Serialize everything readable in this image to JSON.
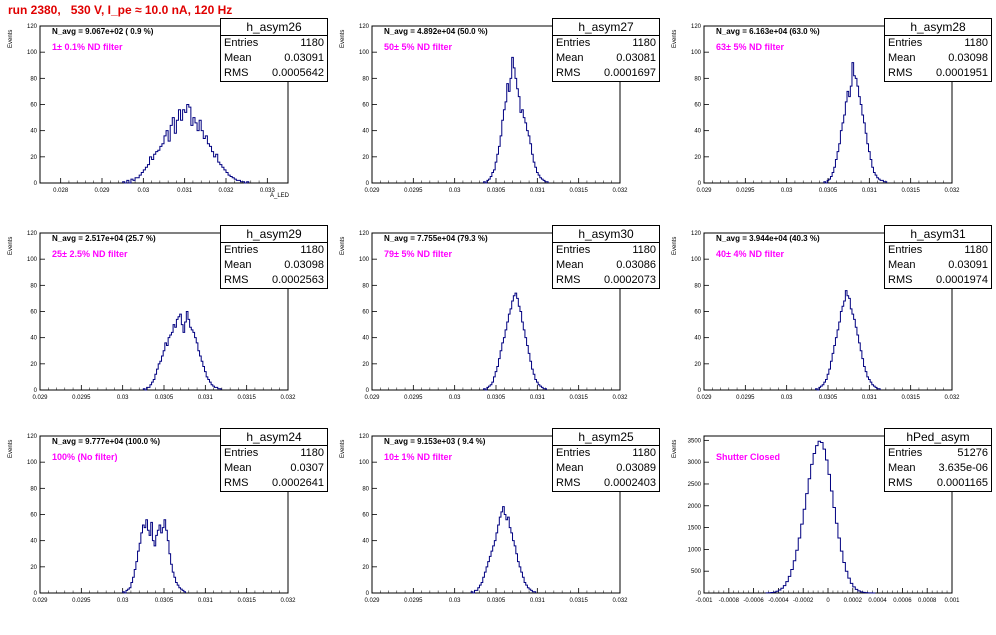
{
  "page_title": "run 2380,   530 V, I_pe ≈ 10.0 nA, 120 Hz",
  "colors": {
    "histogram_line": "#000080",
    "filter_text": "#ff00ff",
    "title_text": "#e00000"
  },
  "chart_data": [
    {
      "type": "bar",
      "name": "h_asym26",
      "ylabel": "Events",
      "xlabel": "A_LED",
      "navg": "N_avg = 9.067e+02 ( 0.9 %)",
      "filter": "1± 0.1% ND filter",
      "stats": {
        "entries": "1180",
        "mean": "0.03091",
        "rms": "0.0005642"
      },
      "xlim": [
        0.0275,
        0.0335
      ],
      "ylim": [
        0,
        120
      ],
      "xticks": [
        "0.028",
        "0.029",
        "0.03",
        "0.031",
        "0.032",
        "0.033"
      ],
      "yticks": [
        "0",
        "20",
        "40",
        "60",
        "80",
        "100",
        "120"
      ],
      "x_start": 0.0295,
      "bin_width": 5e-05,
      "values": [
        1,
        0,
        2,
        0,
        3,
        2,
        4,
        4,
        6,
        8,
        10,
        12,
        14,
        20,
        18,
        22,
        24,
        25,
        28,
        30,
        36,
        40,
        32,
        44,
        50,
        38,
        48,
        56,
        48,
        56,
        54,
        60,
        58,
        44,
        50,
        46,
        40,
        48,
        40,
        34,
        36,
        30,
        28,
        24,
        20,
        22,
        16,
        14,
        12,
        10,
        8,
        6,
        5,
        4,
        3,
        2,
        2,
        1,
        1,
        0,
        1
      ]
    },
    {
      "type": "bar",
      "name": "h_asym27",
      "ylabel": "Events",
      "xlabel": "",
      "navg": "N_avg = 4.892e+04 (50.0 %)",
      "filter": "50± 5% ND filter",
      "stats": {
        "entries": "1180",
        "mean": "0.03081",
        "rms": "0.0001697"
      },
      "xlim": [
        0.029,
        0.032
      ],
      "ylim": [
        0,
        120
      ],
      "xticks": [
        "0.029",
        "0.0295",
        "0.03",
        "0.0305",
        "0.031",
        "0.0315",
        "0.032"
      ],
      "yticks": [
        "0",
        "20",
        "40",
        "60",
        "80",
        "100",
        "120"
      ],
      "x_start": 0.03035,
      "bin_width": 2e-05,
      "values": [
        1,
        0,
        2,
        3,
        5,
        8,
        10,
        16,
        22,
        28,
        36,
        48,
        56,
        62,
        76,
        70,
        80,
        96,
        88,
        80,
        72,
        66,
        54,
        56,
        50,
        46,
        40,
        36,
        30,
        22,
        16,
        12,
        8,
        6,
        4,
        3,
        2,
        1,
        1
      ]
    },
    {
      "type": "bar",
      "name": "h_asym28",
      "ylabel": "Events",
      "xlabel": "",
      "navg": "N_avg = 6.163e+04 (63.0 %)",
      "filter": "63± 5% ND filter",
      "stats": {
        "entries": "1180",
        "mean": "0.03098",
        "rms": "0.0001951"
      },
      "xlim": [
        0.029,
        0.032
      ],
      "ylim": [
        0,
        120
      ],
      "xticks": [
        "0.029",
        "0.0295",
        "0.03",
        "0.0305",
        "0.031",
        "0.0315",
        "0.032"
      ],
      "yticks": [
        "0",
        "20",
        "40",
        "60",
        "80",
        "100",
        "120"
      ],
      "x_start": 0.03045,
      "bin_width": 2e-05,
      "values": [
        1,
        0,
        2,
        3,
        5,
        8,
        12,
        18,
        24,
        30,
        40,
        46,
        52,
        62,
        70,
        66,
        74,
        92,
        82,
        80,
        74,
        66,
        60,
        52,
        46,
        38,
        30,
        24,
        18,
        12,
        8,
        6,
        4,
        3,
        2,
        2,
        1,
        1
      ]
    },
    {
      "type": "bar",
      "name": "h_asym29",
      "ylabel": "Events",
      "xlabel": "",
      "navg": "N_avg = 2.517e+04 (25.7 %)",
      "filter": "25± 2.5% ND filter",
      "stats": {
        "entries": "1180",
        "mean": "0.03098",
        "rms": "0.0002563"
      },
      "xlim": [
        0.029,
        0.032
      ],
      "ylim": [
        0,
        120
      ],
      "xticks": [
        "0.029",
        "0.0295",
        "0.03",
        "0.0305",
        "0.031",
        "0.0315",
        "0.032"
      ],
      "yticks": [
        "0",
        "20",
        "40",
        "60",
        "80",
        "100",
        "120"
      ],
      "x_start": 0.03025,
      "bin_width": 2e-05,
      "values": [
        1,
        0,
        2,
        2,
        4,
        6,
        8,
        12,
        16,
        20,
        22,
        26,
        30,
        36,
        34,
        40,
        42,
        44,
        50,
        48,
        54,
        56,
        58,
        50,
        44,
        52,
        60,
        54,
        48,
        46,
        44,
        40,
        36,
        30,
        26,
        22,
        18,
        14,
        10,
        8,
        6,
        4,
        3,
        2,
        2,
        1,
        1
      ]
    },
    {
      "type": "bar",
      "name": "h_asym30",
      "ylabel": "Events",
      "xlabel": "",
      "navg": "N_avg = 7.755e+04 (79.3 %)",
      "filter": "79± 5% ND filter",
      "stats": {
        "entries": "1180",
        "mean": "0.03086",
        "rms": "0.0002073"
      },
      "xlim": [
        0.029,
        0.032
      ],
      "ylim": [
        0,
        120
      ],
      "xticks": [
        "0.029",
        "0.0295",
        "0.03",
        "0.0305",
        "0.031",
        "0.0315",
        "0.032"
      ],
      "yticks": [
        "0",
        "20",
        "40",
        "60",
        "80",
        "100",
        "120"
      ],
      "x_start": 0.03035,
      "bin_width": 2e-05,
      "values": [
        1,
        0,
        2,
        3,
        4,
        6,
        10,
        14,
        18,
        24,
        30,
        36,
        40,
        46,
        52,
        58,
        62,
        68,
        72,
        74,
        70,
        64,
        60,
        52,
        46,
        40,
        34,
        28,
        22,
        16,
        12,
        8,
        6,
        4,
        3,
        2,
        1,
        1
      ]
    },
    {
      "type": "bar",
      "name": "h_asym31",
      "ylabel": "Events",
      "xlabel": "",
      "navg": "N_avg = 3.944e+04 (40.3 %)",
      "filter": "40± 4% ND filter",
      "stats": {
        "entries": "1180",
        "mean": "0.03091",
        "rms": "0.0001974"
      },
      "xlim": [
        0.029,
        0.032
      ],
      "ylim": [
        0,
        120
      ],
      "xticks": [
        "0.029",
        "0.0295",
        "0.03",
        "0.0305",
        "0.031",
        "0.0315",
        "0.032"
      ],
      "yticks": [
        "0",
        "20",
        "40",
        "60",
        "80",
        "100",
        "120"
      ],
      "x_start": 0.03035,
      "bin_width": 2e-05,
      "values": [
        1,
        0,
        2,
        3,
        4,
        6,
        8,
        12,
        16,
        22,
        28,
        34,
        40,
        46,
        52,
        60,
        64,
        68,
        76,
        72,
        70,
        62,
        58,
        54,
        48,
        42,
        36,
        30,
        24,
        18,
        14,
        10,
        8,
        6,
        4,
        3,
        2,
        1,
        1
      ]
    },
    {
      "type": "bar",
      "name": "h_asym24",
      "ylabel": "Events",
      "xlabel": "",
      "navg": "N_avg = 9.777e+04 (100.0 %)",
      "filter": "100% (No filter)",
      "stats": {
        "entries": "1180",
        "mean": "0.0307",
        "rms": "0.0002641"
      },
      "xlim": [
        0.029,
        0.032
      ],
      "ylim": [
        0,
        120
      ],
      "xticks": [
        "0.029",
        "0.0295",
        "0.03",
        "0.0305",
        "0.031",
        "0.0315",
        "0.032"
      ],
      "yticks": [
        "0",
        "20",
        "40",
        "60",
        "80",
        "100",
        "120"
      ],
      "x_start": 0.03,
      "bin_width": 2e-05,
      "values": [
        1,
        0,
        2,
        3,
        4,
        8,
        12,
        18,
        24,
        32,
        38,
        46,
        52,
        50,
        56,
        48,
        44,
        54,
        40,
        36,
        44,
        48,
        52,
        46,
        50,
        56,
        48,
        40,
        30,
        22,
        16,
        12,
        8,
        6,
        4,
        3,
        2,
        1
      ]
    },
    {
      "type": "bar",
      "name": "h_asym25",
      "ylabel": "Events",
      "xlabel": "",
      "navg": "N_avg = 9.153e+03 ( 9.4 %)",
      "filter": "10± 1% ND filter",
      "stats": {
        "entries": "1180",
        "mean": "0.03089",
        "rms": "0.0002403"
      },
      "xlim": [
        0.029,
        0.032
      ],
      "ylim": [
        0,
        120
      ],
      "xticks": [
        "0.029",
        "0.0295",
        "0.03",
        "0.0305",
        "0.031",
        "0.0315",
        "0.032"
      ],
      "yticks": [
        "0",
        "20",
        "40",
        "60",
        "80",
        "100",
        "120"
      ],
      "x_start": 0.0302,
      "bin_width": 2e-05,
      "values": [
        1,
        0,
        2,
        2,
        4,
        6,
        8,
        12,
        16,
        20,
        24,
        28,
        32,
        36,
        40,
        46,
        52,
        58,
        62,
        66,
        60,
        56,
        58,
        50,
        46,
        40,
        36,
        30,
        24,
        20,
        16,
        12,
        8,
        6,
        4,
        3,
        2,
        1,
        1
      ]
    },
    {
      "type": "bar",
      "name": "hPed_asym",
      "ylabel": "Events",
      "xlabel": "",
      "navg": "",
      "filter": "Shutter Closed",
      "stats": {
        "entries": "51276",
        "mean": "3.635e-06",
        "rms": "0.0001165"
      },
      "xlim": [
        -0.001,
        0.001
      ],
      "ylim": [
        0,
        3600
      ],
      "xticks": [
        "-0.001",
        "-0.0008",
        "-0.0006",
        "-0.0004",
        "-0.0002",
        "0",
        "0.0002",
        "0.0004",
        "0.0006",
        "0.0008",
        "0.001"
      ],
      "yticks": [
        "0",
        "500",
        "1000",
        "1500",
        "2000",
        "2500",
        "3000",
        "3500"
      ],
      "x_start": -0.0005,
      "bin_width": 2e-05,
      "values": [
        2,
        5,
        10,
        20,
        40,
        70,
        110,
        170,
        260,
        380,
        540,
        740,
        980,
        1260,
        1580,
        1920,
        2280,
        2620,
        2950,
        3200,
        3380,
        3480,
        3450,
        3300,
        3050,
        2720,
        2340,
        1960,
        1600,
        1260,
        960,
        700,
        500,
        340,
        220,
        140,
        84,
        48,
        26,
        14,
        8,
        4,
        2,
        1
      ]
    }
  ]
}
